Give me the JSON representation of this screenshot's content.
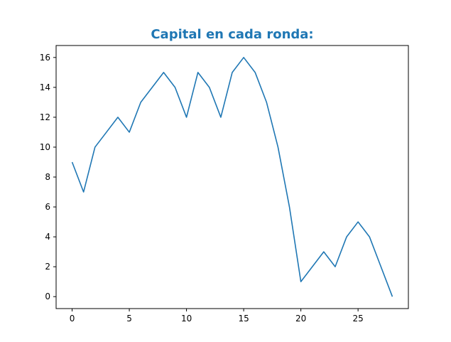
{
  "chart_data": {
    "type": "line",
    "title": "Capital en cada ronda:",
    "xlabel": "",
    "ylabel": "",
    "xlim": [
      -1.4,
      29.4
    ],
    "ylim": [
      -0.8,
      16.8
    ],
    "xticks": [
      0,
      5,
      10,
      15,
      20,
      25
    ],
    "yticks": [
      0,
      2,
      4,
      6,
      8,
      10,
      12,
      14,
      16
    ],
    "grid": false,
    "series": [
      {
        "color": "#1f77b4",
        "x": [
          0,
          1,
          2,
          3,
          4,
          5,
          6,
          7,
          8,
          9,
          10,
          11,
          12,
          13,
          14,
          15,
          16,
          17,
          18,
          19,
          20,
          21,
          22,
          23,
          24,
          25,
          26,
          27,
          28
        ],
        "y": [
          9,
          7,
          10,
          11,
          12,
          11,
          13,
          14,
          15,
          14,
          12,
          15,
          14,
          12,
          15,
          16,
          15,
          13,
          10,
          6,
          1,
          2,
          3,
          2,
          4,
          5,
          4,
          2,
          0
        ]
      }
    ]
  }
}
